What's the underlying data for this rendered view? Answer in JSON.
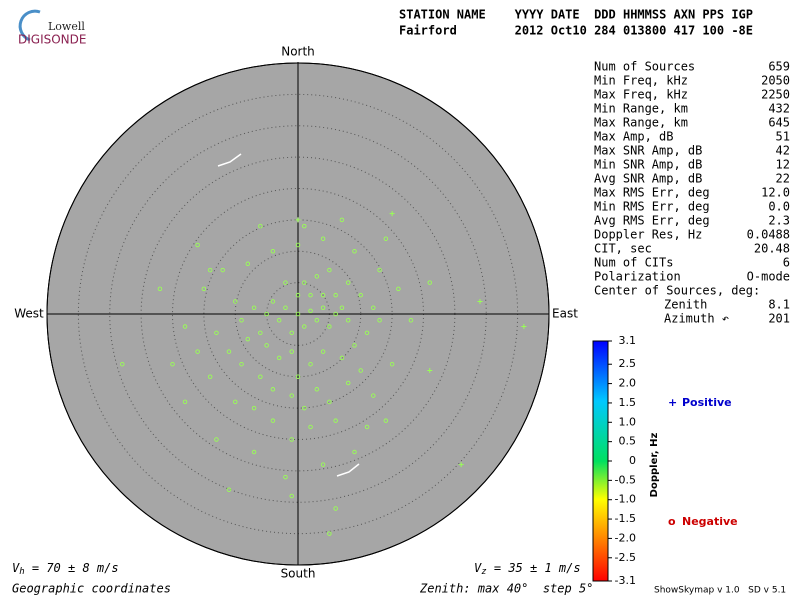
{
  "logo": {
    "top": "Lowell",
    "bottom": "DIGISONDE"
  },
  "header": {
    "row1": "STATION NAME    YYYY DATE  DDD HHMMSS AXN PPS IGP",
    "row2": "Fairford        2012 Oct10 284 013800 417 100 -8E"
  },
  "stats": [
    [
      "Num of Sources",
      "659"
    ],
    [
      "Min Freq, kHz",
      "2050"
    ],
    [
      "Max Freq, kHz",
      "2250"
    ],
    [
      "Min Range, km",
      "432"
    ],
    [
      "Max Range, km",
      "645"
    ],
    [
      "Max Amp, dB",
      "51"
    ],
    [
      "Max SNR Amp, dB",
      "42"
    ],
    [
      "Min SNR Amp, dB",
      "12"
    ],
    [
      "Avg SNR Amp, dB",
      "22"
    ],
    [
      "Max RMS Err, deg",
      "12.0"
    ],
    [
      "Min RMS Err, deg",
      "0.0"
    ],
    [
      "Avg RMS Err, deg",
      "2.3"
    ],
    [
      "Doppler Res, Hz",
      "0.0488"
    ],
    [
      "CIT, sec",
      "20.48"
    ],
    [
      "Num of CITs",
      "6"
    ],
    [
      "Polarization",
      "O-mode"
    ],
    [
      "Center of Sources, deg:",
      ""
    ],
    [
      "Zenith",
      "8.1"
    ],
    [
      "Azimuth ↶",
      "201"
    ]
  ],
  "chart_data": {
    "type": "polar-scatter",
    "directions": {
      "north": "North",
      "south": "South",
      "west": "West",
      "east": "East"
    },
    "rings": [
      5,
      10,
      15,
      20,
      25,
      30,
      35,
      40
    ],
    "rlim": [
      0,
      40
    ],
    "series": [
      {
        "name": "Negative",
        "color": "#99ff55",
        "legend_color": "#cc0000",
        "symbol": "o",
        "x": [
          -4,
          -2,
          0,
          2,
          4,
          6,
          3,
          1,
          -1,
          -3,
          5,
          7,
          8,
          -5,
          -7,
          -9,
          -10,
          -6,
          0,
          2,
          4,
          6,
          1,
          -2,
          3,
          5,
          8,
          10,
          12,
          13,
          11,
          9,
          7,
          4,
          2,
          0,
          -1,
          -3,
          -5,
          -8,
          -11,
          -13,
          -9,
          -6,
          -4,
          -1,
          1,
          3,
          5,
          8,
          10,
          12,
          6,
          2,
          -1,
          -4,
          -7,
          -10,
          -14,
          -16,
          -18,
          -15,
          -12,
          -8,
          -4,
          0,
          4,
          9,
          13,
          16,
          18,
          15,
          14,
          9,
          4,
          -2,
          -7,
          -13,
          -18,
          -20,
          -22,
          -16,
          -6,
          1,
          7,
          14,
          21,
          -28,
          -11,
          5,
          -1,
          6,
          -14,
          11
        ],
        "y": [
          2,
          1,
          0,
          0.5,
          1,
          0,
          -1,
          -2,
          -3,
          -1,
          -2,
          1,
          -1,
          0,
          1,
          -1,
          2,
          -3,
          3,
          3,
          3,
          3,
          5,
          5,
          6,
          7,
          5,
          3,
          1,
          -1,
          -3,
          -5,
          -7,
          -6,
          -8,
          -10,
          -6,
          -7,
          -5,
          -4,
          -6,
          -3,
          -8,
          -10,
          -12,
          -13,
          -15,
          -12,
          -14,
          -11,
          -9,
          -13,
          -17,
          -18,
          -20,
          -17,
          -15,
          -14,
          -10,
          -6,
          -2,
          4,
          7,
          8,
          10,
          11,
          12,
          10,
          7,
          4,
          -1,
          -8,
          -17,
          -22,
          -24,
          -26,
          -22,
          -20,
          -14,
          -8,
          4,
          11,
          14,
          14,
          15,
          12,
          5,
          -8,
          -28,
          -35,
          -29,
          -31,
          7,
          -18
        ]
      },
      {
        "name": "Positive",
        "color": "#99ff55",
        "legend_color": "#0000cc",
        "symbol": "+",
        "x": [
          15,
          29,
          36,
          26,
          21,
          0
        ],
        "y": [
          16,
          2,
          -2,
          -24,
          -9,
          15
        ]
      }
    ],
    "colorbar": {
      "label": "Doppler, Hz",
      "lim": [
        -3.1,
        3.1
      ],
      "ticks": [
        3.1,
        2.5,
        {
          "value": 2,
          "label": "2.0"
        },
        1.5,
        {
          "value": 1,
          "label": "1.0"
        },
        0.5,
        0,
        -0.5,
        {
          "value": -1,
          "label": "-1.0"
        },
        -1.5,
        {
          "value": -2,
          "label": "-2.0"
        },
        -2.5,
        -3.1
      ]
    }
  },
  "footer": {
    "vh": {
      "symbol": "V",
      "sub": "h",
      "text": " = 70 ± 8 m/s"
    },
    "vz": {
      "symbol": "V",
      "sub": "z",
      "text": " = 35 ± 1 m/s"
    },
    "coords": "Geographic coordinates",
    "zenith": "Zenith: max 40°  step 5°",
    "version": "ShowSkymap v 1.0   SD v 5.1"
  }
}
